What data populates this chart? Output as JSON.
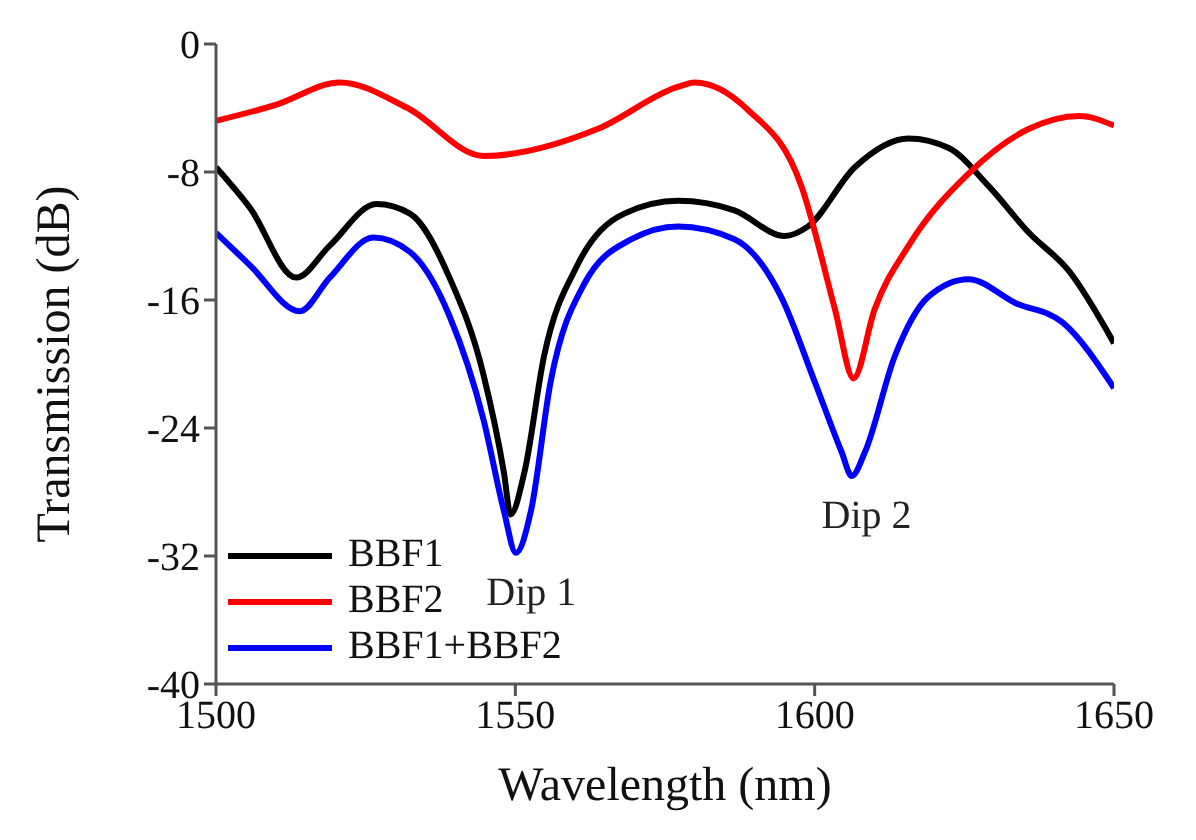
{
  "chart_data": {
    "type": "line",
    "xlabel": "Wavelength (nm)",
    "ylabel": "Transmission (dB)",
    "xlim": [
      1500,
      1650
    ],
    "ylim": [
      -40,
      0
    ],
    "xticks": [
      1500,
      1550,
      1600,
      1650
    ],
    "yticks": [
      -40,
      -32,
      -24,
      -16,
      -8,
      0
    ],
    "grid": false,
    "legend": "bottom left",
    "marker": "none",
    "line_style": "solid",
    "annotations": [
      {
        "text": "Dip 1",
        "x": 1550,
        "y": -31.8
      },
      {
        "text": "Dip 2",
        "x": 1606,
        "y": -27
      }
    ],
    "series": [
      {
        "name": "BBF1",
        "color": "#000000",
        "x": [
          1500,
          1505.6,
          1513.4,
          1519,
          1526.8,
          1532.4,
          1539,
          1544.7,
          1548.1,
          1549.2,
          1551.5,
          1554.8,
          1560.4,
          1568.2,
          1577.2,
          1586.6,
          1595,
          1598.9,
          1606.7,
          1615.7,
          1622.4,
          1629.1,
          1635.8,
          1642.5,
          1650
        ],
        "values": [
          -7.7,
          -10.2,
          -14.6,
          -12.6,
          -10,
          -10.6,
          -14.6,
          -20.7,
          -26.8,
          -29.4,
          -26.8,
          -19.5,
          -13.8,
          -10.6,
          -9.8,
          -10.4,
          -12,
          -11.4,
          -7.7,
          -5.9,
          -6.5,
          -8.9,
          -11.8,
          -14.2,
          -18.7
        ]
      },
      {
        "name": "BBF2",
        "color": "#ff0000",
        "x": [
          1500,
          1510,
          1520.7,
          1532,
          1544.7,
          1563.8,
          1577,
          1580,
          1588.8,
          1597.8,
          1603.4,
          1606.5,
          1610,
          1615.7,
          1625.7,
          1635.8,
          1644.2,
          1650
        ],
        "values": [
          -4.8,
          -3.8,
          -2.4,
          -4,
          -7,
          -5.3,
          -2.7,
          -2.4,
          -4.1,
          -8.9,
          -16.6,
          -20.9,
          -16.6,
          -12.6,
          -8.1,
          -5.3,
          -4.5,
          -5.1
        ]
      },
      {
        "name": "BBF1+BBF2",
        "color": "#0000ff",
        "x": [
          1500,
          1505.6,
          1514,
          1519,
          1526.3,
          1532.4,
          1539,
          1544.7,
          1548.1,
          1550.1,
          1552.6,
          1555.9,
          1561.5,
          1569.4,
          1577.2,
          1586.6,
          1594.4,
          1600,
          1604.5,
          1606.2,
          1608.4,
          1613.4,
          1619,
          1625.7,
          1633.6,
          1641.4,
          1650
        ],
        "values": [
          -11.8,
          -13.8,
          -16.7,
          -14.6,
          -12.1,
          -13,
          -17,
          -23.5,
          -29.2,
          -31.8,
          -29.2,
          -21.1,
          -15,
          -12.2,
          -11.4,
          -12.2,
          -15.8,
          -21.1,
          -25.5,
          -27,
          -25.5,
          -19.5,
          -15.8,
          -14.7,
          -16.2,
          -17.4,
          -21.5
        ]
      }
    ]
  }
}
